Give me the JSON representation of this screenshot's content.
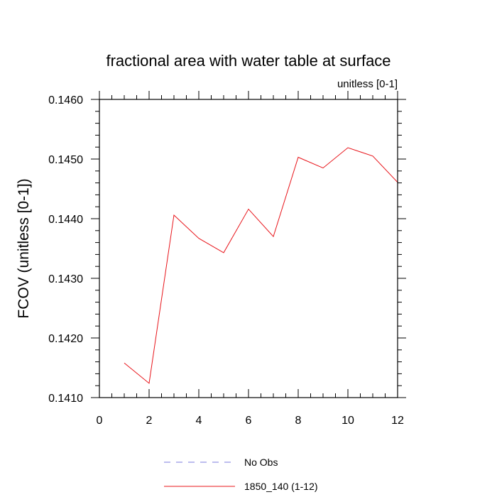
{
  "chart_data": {
    "type": "line",
    "title": "fractional area with water table at surface",
    "units_label": "unitless [0-1]",
    "xlabel": "",
    "ylabel": "FCOV  (unitless [0-1])",
    "xlim": [
      0,
      12
    ],
    "ylim": [
      0.141,
      0.146
    ],
    "x_ticks": [
      0,
      2,
      4,
      6,
      8,
      10,
      12
    ],
    "x_tick_labels": [
      "0",
      "2",
      "4",
      "6",
      "8",
      "10",
      "12"
    ],
    "y_ticks": [
      0.141,
      0.142,
      0.143,
      0.144,
      0.145,
      0.146
    ],
    "y_tick_labels": [
      "0.1410",
      "0.1420",
      "0.1430",
      "0.1440",
      "0.1450",
      "0.1460"
    ],
    "grid": false,
    "legend_position": "bottom",
    "series": [
      {
        "name": "1850_140 (1-12)",
        "color": "#e8141a",
        "style": "solid",
        "x": [
          1,
          2,
          3,
          4,
          5,
          6,
          7,
          8,
          9,
          10,
          11,
          12
        ],
        "y": [
          0.14158,
          0.14124,
          0.14406,
          0.14367,
          0.14343,
          0.14416,
          0.1437,
          0.14503,
          0.14485,
          0.14519,
          0.14505,
          0.14461
        ]
      },
      {
        "name": "No Obs",
        "color": "#7b7bdc",
        "style": "dashed",
        "x": [],
        "y": []
      }
    ]
  }
}
